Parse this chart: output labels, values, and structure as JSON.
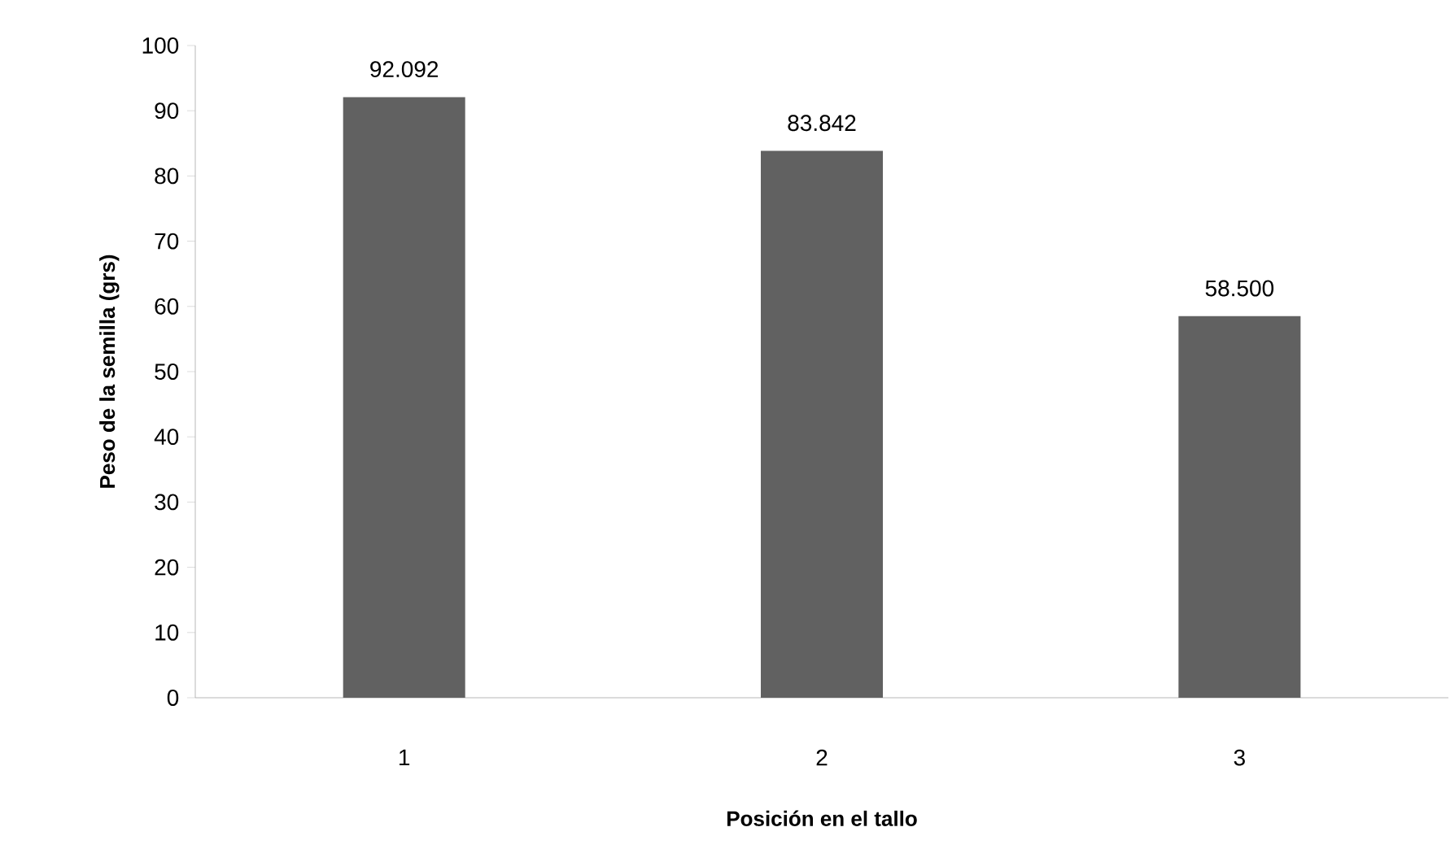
{
  "chart_data": {
    "type": "bar",
    "xlabel": "Posición en el tallo",
    "ylabel": "Peso de la semilla (grs)",
    "categories": [
      "1",
      "2",
      "3"
    ],
    "values": [
      92.092,
      83.842,
      58.5
    ],
    "value_labels": [
      "92.092",
      "83.842",
      "58.500"
    ],
    "color": "#616161",
    "ylim": [
      0,
      100
    ],
    "yticks": [
      0,
      10,
      20,
      30,
      40,
      50,
      60,
      70,
      80,
      90,
      100
    ]
  }
}
